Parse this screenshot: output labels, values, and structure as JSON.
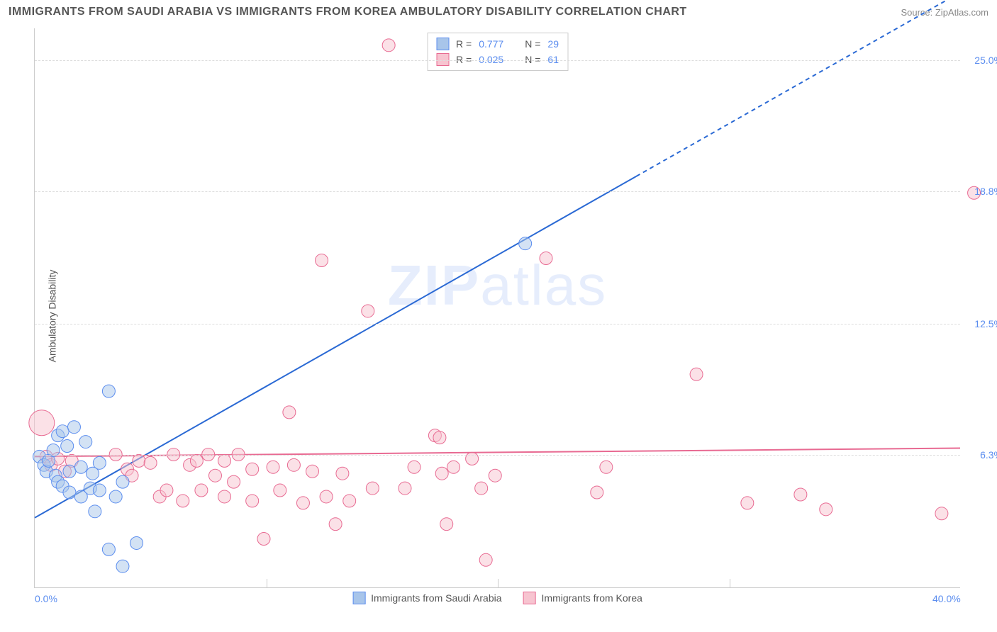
{
  "title": "IMMIGRANTS FROM SAUDI ARABIA VS IMMIGRANTS FROM KOREA AMBULATORY DISABILITY CORRELATION CHART",
  "source": "Source: ZipAtlas.com",
  "y_axis_label": "Ambulatory Disability",
  "watermark_left": "ZIP",
  "watermark_right": "atlas",
  "legend_top": {
    "r_label": "R =",
    "n_label": "N =",
    "series": [
      {
        "r": "0.777",
        "n": "29",
        "fill": "#a8c5ea",
        "stroke": "#5b8def"
      },
      {
        "r": "0.025",
        "n": "61",
        "fill": "#f7c4d0",
        "stroke": "#e86a92"
      }
    ]
  },
  "legend_bottom": [
    {
      "label": "Immigrants from Saudi Arabia",
      "fill": "#a8c5ea",
      "stroke": "#5b8def"
    },
    {
      "label": "Immigrants from Korea",
      "fill": "#f7c4d0",
      "stroke": "#e86a92"
    }
  ],
  "axes": {
    "xlim": [
      0,
      40
    ],
    "ylim": [
      0,
      26.5
    ],
    "x_ticks": [
      {
        "v": 0,
        "label": "0.0%"
      },
      {
        "v": 40,
        "label": "40.0%"
      }
    ],
    "x_minor_ticks": [
      10,
      20,
      30
    ],
    "y_ticks": [
      {
        "v": 6.3,
        "label": "6.3%"
      },
      {
        "v": 12.5,
        "label": "12.5%"
      },
      {
        "v": 18.8,
        "label": "18.8%"
      },
      {
        "v": 25.0,
        "label": "25.0%"
      }
    ]
  },
  "series": {
    "saudi": {
      "color_fill": "#a8c5ea",
      "color_stroke": "#5b8def",
      "fill_opacity": 0.5,
      "marker_r": 9,
      "line": {
        "x1": 0,
        "y1": 3.3,
        "x2": 40,
        "y2": 28.2,
        "solid_until_x": 26,
        "stroke": "#2a69d4",
        "width": 2
      },
      "points": [
        [
          0.2,
          6.2
        ],
        [
          0.4,
          5.8
        ],
        [
          0.5,
          5.5
        ],
        [
          0.6,
          6.0
        ],
        [
          0.8,
          6.5
        ],
        [
          0.9,
          5.3
        ],
        [
          1.0,
          5.0
        ],
        [
          1.0,
          7.2
        ],
        [
          1.2,
          4.8
        ],
        [
          1.2,
          7.4
        ],
        [
          1.4,
          6.7
        ],
        [
          1.5,
          5.5
        ],
        [
          1.5,
          4.5
        ],
        [
          1.7,
          7.6
        ],
        [
          2.0,
          5.7
        ],
        [
          2.0,
          4.3
        ],
        [
          2.2,
          6.9
        ],
        [
          2.4,
          4.7
        ],
        [
          2.5,
          5.4
        ],
        [
          2.6,
          3.6
        ],
        [
          2.8,
          4.6
        ],
        [
          2.8,
          5.9
        ],
        [
          3.2,
          9.3
        ],
        [
          3.2,
          1.8
        ],
        [
          3.5,
          4.3
        ],
        [
          3.8,
          5.0
        ],
        [
          3.8,
          1.0
        ],
        [
          4.4,
          2.1
        ],
        [
          21.2,
          16.3
        ]
      ]
    },
    "korea": {
      "color_fill": "#f7c4d0",
      "color_stroke": "#e86a92",
      "fill_opacity": 0.5,
      "marker_r": 9,
      "line": {
        "x1": 0,
        "y1": 6.2,
        "x2": 40,
        "y2": 6.6,
        "stroke": "#e86a92",
        "width": 2
      },
      "points": [
        [
          0.3,
          7.8,
          18
        ],
        [
          0.5,
          6.2
        ],
        [
          0.7,
          5.8
        ],
        [
          1.0,
          6.1
        ],
        [
          1.3,
          5.5
        ],
        [
          1.6,
          6.0
        ],
        [
          3.5,
          6.3
        ],
        [
          4.0,
          5.6
        ],
        [
          4.2,
          5.3
        ],
        [
          4.5,
          6.0
        ],
        [
          5.0,
          5.9
        ],
        [
          5.4,
          4.3
        ],
        [
          5.7,
          4.6
        ],
        [
          6.0,
          6.3
        ],
        [
          6.4,
          4.1
        ],
        [
          6.7,
          5.8
        ],
        [
          7.0,
          6.0
        ],
        [
          7.2,
          4.6
        ],
        [
          7.5,
          6.3
        ],
        [
          7.8,
          5.3
        ],
        [
          8.2,
          4.3
        ],
        [
          8.2,
          6.0
        ],
        [
          8.6,
          5.0
        ],
        [
          8.8,
          6.3
        ],
        [
          9.4,
          4.1
        ],
        [
          9.4,
          5.6
        ],
        [
          9.9,
          2.3
        ],
        [
          10.3,
          5.7
        ],
        [
          10.6,
          4.6
        ],
        [
          11.0,
          8.3
        ],
        [
          11.2,
          5.8
        ],
        [
          11.6,
          4.0
        ],
        [
          12.0,
          5.5
        ],
        [
          12.4,
          15.5
        ],
        [
          12.6,
          4.3
        ],
        [
          13.0,
          3.0
        ],
        [
          13.3,
          5.4
        ],
        [
          13.6,
          4.1
        ],
        [
          14.4,
          13.1
        ],
        [
          14.6,
          4.7
        ],
        [
          15.3,
          25.7
        ],
        [
          16.0,
          4.7
        ],
        [
          16.4,
          5.7
        ],
        [
          17.3,
          7.2
        ],
        [
          17.5,
          7.1
        ],
        [
          17.6,
          5.4
        ],
        [
          17.8,
          3.0
        ],
        [
          18.1,
          5.7
        ],
        [
          18.9,
          6.1
        ],
        [
          19.3,
          4.7
        ],
        [
          19.5,
          1.3
        ],
        [
          19.9,
          5.3
        ],
        [
          22.1,
          15.6
        ],
        [
          24.3,
          4.5
        ],
        [
          24.7,
          5.7
        ],
        [
          28.6,
          10.1
        ],
        [
          30.8,
          4.0
        ],
        [
          33.1,
          4.4
        ],
        [
          34.2,
          3.7
        ],
        [
          39.2,
          3.5
        ],
        [
          40.6,
          18.7
        ]
      ]
    }
  }
}
